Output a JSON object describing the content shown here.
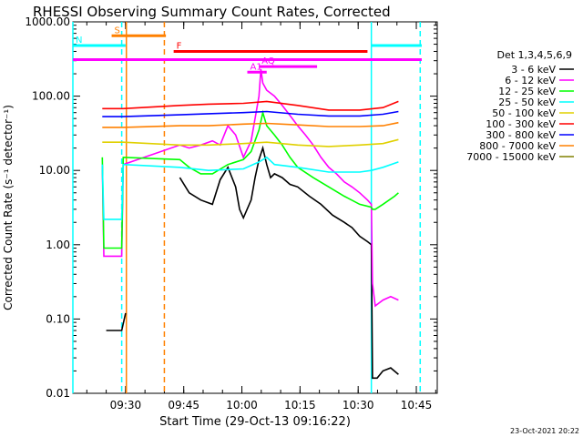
{
  "chart_data": {
    "type": "line",
    "title": "RHESSI Observing Summary Count Rates, Corrected",
    "xlabel": "Start Time (29-Oct-13 09:16:22)",
    "ylabel": "Corrected Count Rate (s⁻¹ detector⁻¹)",
    "yscale": "log",
    "ylim": [
      0.01,
      1000
    ],
    "xlim_minutes": [
      0,
      94
    ],
    "x_tick_labels": [
      "09:30",
      "09:45",
      "10:00",
      "10:15",
      "10:30",
      "10:45"
    ],
    "x_tick_minutes": [
      13.6,
      28.6,
      43.6,
      58.6,
      73.6,
      88.6
    ],
    "y_tick_labels": [
      "0.01",
      "0.10",
      "1.00",
      "10.00",
      "100.00",
      "1000.00"
    ],
    "y_tick_values": [
      0.01,
      0.1,
      1,
      10,
      100,
      1000
    ],
    "legend_title": "Det 1,3,4,5,6,9",
    "legend_position": "right",
    "series": [
      {
        "name": "3 - 6 keV",
        "color": "#000000",
        "x": [
          8.6,
          12.6,
          13.6,
          22,
          26.6,
          27.6,
          30,
          33,
          36,
          38,
          40,
          42,
          43,
          44,
          46,
          47,
          48,
          49,
          50,
          51,
          52,
          54,
          56,
          58,
          61,
          64,
          67,
          70,
          72,
          74,
          76,
          77,
          77.3,
          78.5,
          80,
          82,
          84
        ],
        "y": [
          0.07,
          0.07,
          0.12,
          null,
          null,
          8,
          5,
          4,
          3.5,
          7.5,
          11,
          6,
          3,
          2.3,
          4,
          8,
          14,
          20,
          12,
          8,
          9,
          8,
          6.5,
          6,
          4.5,
          3.5,
          2.5,
          2,
          1.7,
          1.3,
          1.1,
          1.0,
          0.016,
          0.016,
          0.02,
          0.022,
          0.018
        ]
      },
      {
        "name": "6 - 12 keV",
        "color": "#ff00ff",
        "x": [
          7.6,
          8,
          12.6,
          13,
          27.6,
          30,
          33,
          36,
          38,
          40,
          42,
          44,
          46,
          48,
          48.5,
          49,
          50,
          52,
          54,
          56,
          58,
          60,
          62,
          64,
          66,
          68,
          70,
          72,
          74,
          76,
          77,
          77.3,
          78,
          80,
          82,
          84
        ],
        "y": [
          12,
          0.7,
          0.7,
          12,
          22,
          20,
          22,
          25,
          22,
          40,
          30,
          15,
          25,
          100,
          230,
          150,
          120,
          100,
          75,
          55,
          40,
          30,
          22,
          15,
          11,
          9,
          7,
          6,
          5,
          4,
          3.5,
          0.3,
          0.15,
          0.18,
          0.2,
          0.18
        ]
      },
      {
        "name": "12 - 25 keV",
        "color": "#00ff00",
        "x": [
          7.6,
          8,
          12.6,
          13,
          27.6,
          30,
          33,
          36,
          40,
          44,
          46,
          48,
          49,
          50,
          52,
          54,
          56,
          58,
          62,
          66,
          70,
          74,
          77,
          77.3,
          78,
          80,
          83,
          84
        ],
        "y": [
          15,
          0.9,
          0.9,
          15,
          14,
          11,
          9,
          9,
          12,
          14,
          18,
          35,
          60,
          40,
          30,
          22,
          15,
          11,
          8,
          6,
          4.5,
          3.5,
          3.2,
          3,
          3,
          3.5,
          4.5,
          5
        ]
      },
      {
        "name": "25 - 50 keV",
        "color": "#00ffff",
        "x": [
          7.6,
          8,
          12.6,
          13,
          27.6,
          35,
          44,
          48,
          50,
          52,
          58,
          66,
          74,
          77,
          80,
          84
        ],
        "y": [
          12,
          2.2,
          2.2,
          12,
          11,
          10,
          10.5,
          13,
          15,
          12,
          11,
          9.5,
          9.5,
          10,
          11,
          13
        ]
      },
      {
        "name": "50 - 100 keV",
        "color": "#e0d000",
        "x": [
          7.6,
          12.6,
          13,
          27.6,
          35,
          44,
          50,
          58,
          66,
          74,
          80,
          84
        ],
        "y": [
          24,
          24,
          24,
          22,
          22,
          23,
          24,
          22,
          21,
          22,
          23,
          26
        ]
      },
      {
        "name": "100 - 300 keV",
        "color": "#ff0000",
        "x": [
          7.6,
          12.6,
          13,
          27.6,
          35,
          44,
          50,
          58,
          66,
          74,
          80,
          84
        ],
        "y": [
          68,
          68,
          68,
          75,
          78,
          80,
          85,
          75,
          65,
          65,
          70,
          85
        ]
      },
      {
        "name": "300 - 800 keV",
        "color": "#0000ff",
        "x": [
          7.6,
          12.6,
          13,
          27.6,
          35,
          44,
          50,
          58,
          66,
          74,
          80,
          84
        ],
        "y": [
          53,
          53,
          53,
          56,
          58,
          60,
          62,
          57,
          54,
          54,
          57,
          62
        ]
      },
      {
        "name": "800 - 7000 keV",
        "color": "#ff8000",
        "x": [
          7.6,
          12.6,
          13,
          27.6,
          35,
          44,
          50,
          58,
          66,
          74,
          80,
          84
        ],
        "y": [
          38,
          38,
          38,
          40,
          40,
          42,
          43,
          41,
          39,
          39,
          40,
          44
        ]
      },
      {
        "name": "7000 - 15000 keV",
        "color": "#808000",
        "x": [],
        "y": []
      }
    ],
    "flag_bars": [
      {
        "label": "S",
        "color": "#ff8000",
        "x0": 10,
        "x1": 24,
        "y": 650
      },
      {
        "label": "N",
        "color": "#00ffff",
        "x0": 0,
        "x1": 13.6,
        "y": 480
      },
      {
        "label": "",
        "color": "#00ffff",
        "x0": 77,
        "x1": 90,
        "y": 480
      },
      {
        "label": "F",
        "color": "#ff0000",
        "x0": 26,
        "x1": 76,
        "y": 400
      },
      {
        "label": "",
        "color": "#ff00ff",
        "x0": 0,
        "x1": 90,
        "y": 310
      },
      {
        "label": "AQ",
        "color": "#ff00ff",
        "x0": 48,
        "x1": 63,
        "y": 250
      },
      {
        "label": "A1",
        "color": "#ff00ff",
        "x0": 45,
        "x1": 50,
        "y": 210
      }
    ],
    "vertical_markers": [
      {
        "x": 0,
        "color": "#00ffff",
        "dash": false
      },
      {
        "x": 12.6,
        "color": "#00ffff",
        "dash": true
      },
      {
        "x": 13.8,
        "color": "#ff8000",
        "dash": false
      },
      {
        "x": 23.6,
        "color": "#ff8000",
        "dash": true
      },
      {
        "x": 77,
        "color": "#00ffff",
        "dash": false
      },
      {
        "x": 89.6,
        "color": "#00ffff",
        "dash": true
      }
    ]
  },
  "timestamp": "23-Oct-2021 20:22"
}
